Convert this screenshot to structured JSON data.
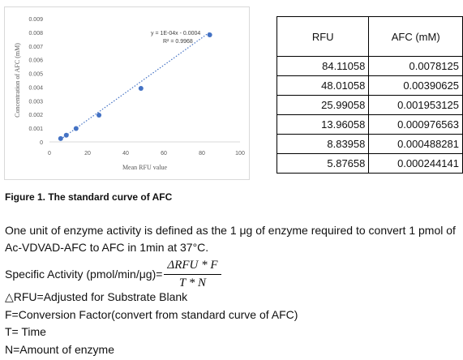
{
  "chart_data": {
    "type": "scatter",
    "x": [
      84.11058,
      48.01058,
      25.99058,
      13.96058,
      8.83958,
      5.87658
    ],
    "y": [
      0.0078125,
      0.00390625,
      0.001953125,
      0.000976563,
      0.000488281,
      0.000244141
    ],
    "xlabel": "Mean RFU value",
    "ylabel": "Concentration of AFC (mM)",
    "xlim": [
      0,
      100
    ],
    "ylim": [
      0,
      0.009
    ],
    "x_ticks": [
      "0",
      "20",
      "40",
      "60",
      "80",
      "100"
    ],
    "y_ticks": [
      "0",
      "0.001",
      "0.002",
      "0.003",
      "0.004",
      "0.005",
      "0.006",
      "0.007",
      "0.008",
      "0.009"
    ],
    "trendline": {
      "slope": 0.0001,
      "intercept": -0.0004,
      "style": "dotted"
    },
    "annotation_equation": "y = 1E-04x - 0.0004",
    "annotation_r2": "R² = 0.9968",
    "grid": false,
    "point_color": "#4472c4"
  },
  "table": {
    "headers": [
      "RFU",
      "AFC (mM)"
    ],
    "rows": [
      [
        "84.11058",
        "0.0078125"
      ],
      [
        "48.01058",
        "0.00390625"
      ],
      [
        "25.99058",
        "0.001953125"
      ],
      [
        "13.96058",
        "0.000976563"
      ],
      [
        "8.83958",
        "0.000488281"
      ],
      [
        "5.87658",
        "0.000244141"
      ]
    ]
  },
  "caption": "Figure 1. The standard curve of AFC",
  "paragraph_line1": "One unit of enzyme activity is defined as the 1 μg of enzyme required to convert 1 pmol of",
  "paragraph_line2": "Ac-VDVAD-AFC to AFC in 1min at 37°C.",
  "formula": {
    "label": "Specific Activity (pmol/min/μg)=",
    "numerator": "ΔRFU * F",
    "denominator": "T * N"
  },
  "definitions": [
    "△RFU=Adjusted for Substrate Blank",
    "F=Conversion Factor(convert from standard curve of AFC)",
    "T= Time",
    "N=Amount of enzyme"
  ]
}
